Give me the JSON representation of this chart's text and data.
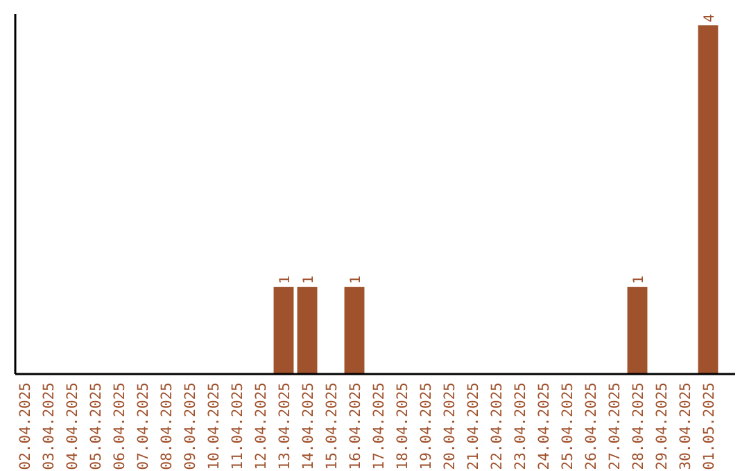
{
  "chart_data": {
    "type": "bar",
    "categories": [
      "02.04.2025",
      "03.04.2025",
      "04.04.2025",
      "05.04.2025",
      "06.04.2025",
      "07.04.2025",
      "08.04.2025",
      "09.04.2025",
      "10.04.2025",
      "11.04.2025",
      "12.04.2025",
      "13.04.2025",
      "14.04.2025",
      "15.04.2025",
      "16.04.2025",
      "17.04.2025",
      "18.04.2025",
      "19.04.2025",
      "20.04.2025",
      "21.04.2025",
      "22.04.2025",
      "23.04.2025",
      "24.04.2025",
      "25.04.2025",
      "26.04.2025",
      "27.04.2025",
      "28.04.2025",
      "29.04.2025",
      "30.04.2025",
      "01.05.2025"
    ],
    "values": [
      0,
      0,
      0,
      0,
      0,
      0,
      0,
      0,
      0,
      0,
      0,
      1,
      1,
      0,
      1,
      0,
      0,
      0,
      0,
      0,
      0,
      0,
      0,
      0,
      0,
      0,
      1,
      0,
      0,
      4
    ],
    "value_labels": [
      null,
      null,
      null,
      null,
      null,
      null,
      null,
      null,
      null,
      null,
      null,
      "1",
      "1",
      null,
      "1",
      null,
      null,
      null,
      null,
      null,
      null,
      null,
      null,
      null,
      null,
      null,
      "1",
      null,
      null,
      "4"
    ],
    "color": "#a0522d",
    "ylim": [
      0,
      4.13
    ],
    "tick_labels": "x"
  }
}
